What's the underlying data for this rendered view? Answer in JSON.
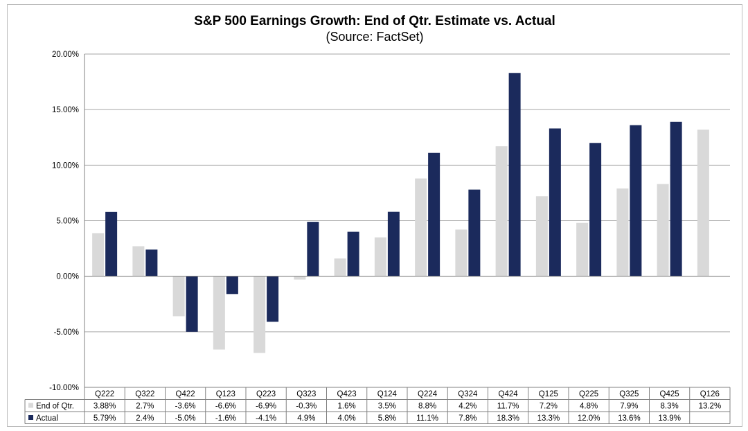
{
  "chart_data": {
    "type": "bar",
    "title": "S&P 500 Earnings Growth: End of Qtr. Estimate vs. Actual",
    "subtitle": "(Source: FactSet)",
    "categories": [
      "Q222",
      "Q322",
      "Q422",
      "Q123",
      "Q223",
      "Q323",
      "Q423",
      "Q124",
      "Q224",
      "Q324",
      "Q424",
      "Q125",
      "Q225",
      "Q325",
      "Q425",
      "Q126"
    ],
    "series": [
      {
        "name": "End of Qtr.",
        "color": "#d9d9d9",
        "values": [
          3.88,
          2.7,
          -3.6,
          -6.6,
          -6.9,
          -0.3,
          1.6,
          3.5,
          8.8,
          4.2,
          11.7,
          7.2,
          4.8,
          7.9,
          8.3,
          13.2
        ],
        "labels": [
          "3.88%",
          "2.7%",
          "-3.6%",
          "-6.6%",
          "-6.9%",
          "-0.3%",
          "1.6%",
          "3.5%",
          "8.8%",
          "4.2%",
          "11.7%",
          "7.2%",
          "4.8%",
          "7.9%",
          "8.3%",
          "13.2%"
        ]
      },
      {
        "name": "Actual",
        "color": "#1b2a5c",
        "values": [
          5.79,
          2.4,
          -5.0,
          -1.6,
          -4.1,
          4.9,
          4.0,
          5.8,
          11.1,
          7.8,
          18.3,
          13.3,
          12.0,
          13.6,
          13.9,
          null
        ],
        "labels": [
          "5.79%",
          "2.4%",
          "-5.0%",
          "-1.6%",
          "-4.1%",
          "4.9%",
          "4.0%",
          "5.8%",
          "11.1%",
          "7.8%",
          "18.3%",
          "13.3%",
          "12.0%",
          "13.6%",
          "13.9%",
          ""
        ]
      }
    ],
    "ylim": [
      -10,
      20
    ],
    "yticks": [
      -10,
      -5,
      0,
      5,
      10,
      15,
      20
    ],
    "ytick_labels": [
      "-10.00%",
      "-5.00%",
      "0.00%",
      "5.00%",
      "10.00%",
      "15.00%",
      "20.00%"
    ],
    "grid": true,
    "legend": "data table, left"
  }
}
